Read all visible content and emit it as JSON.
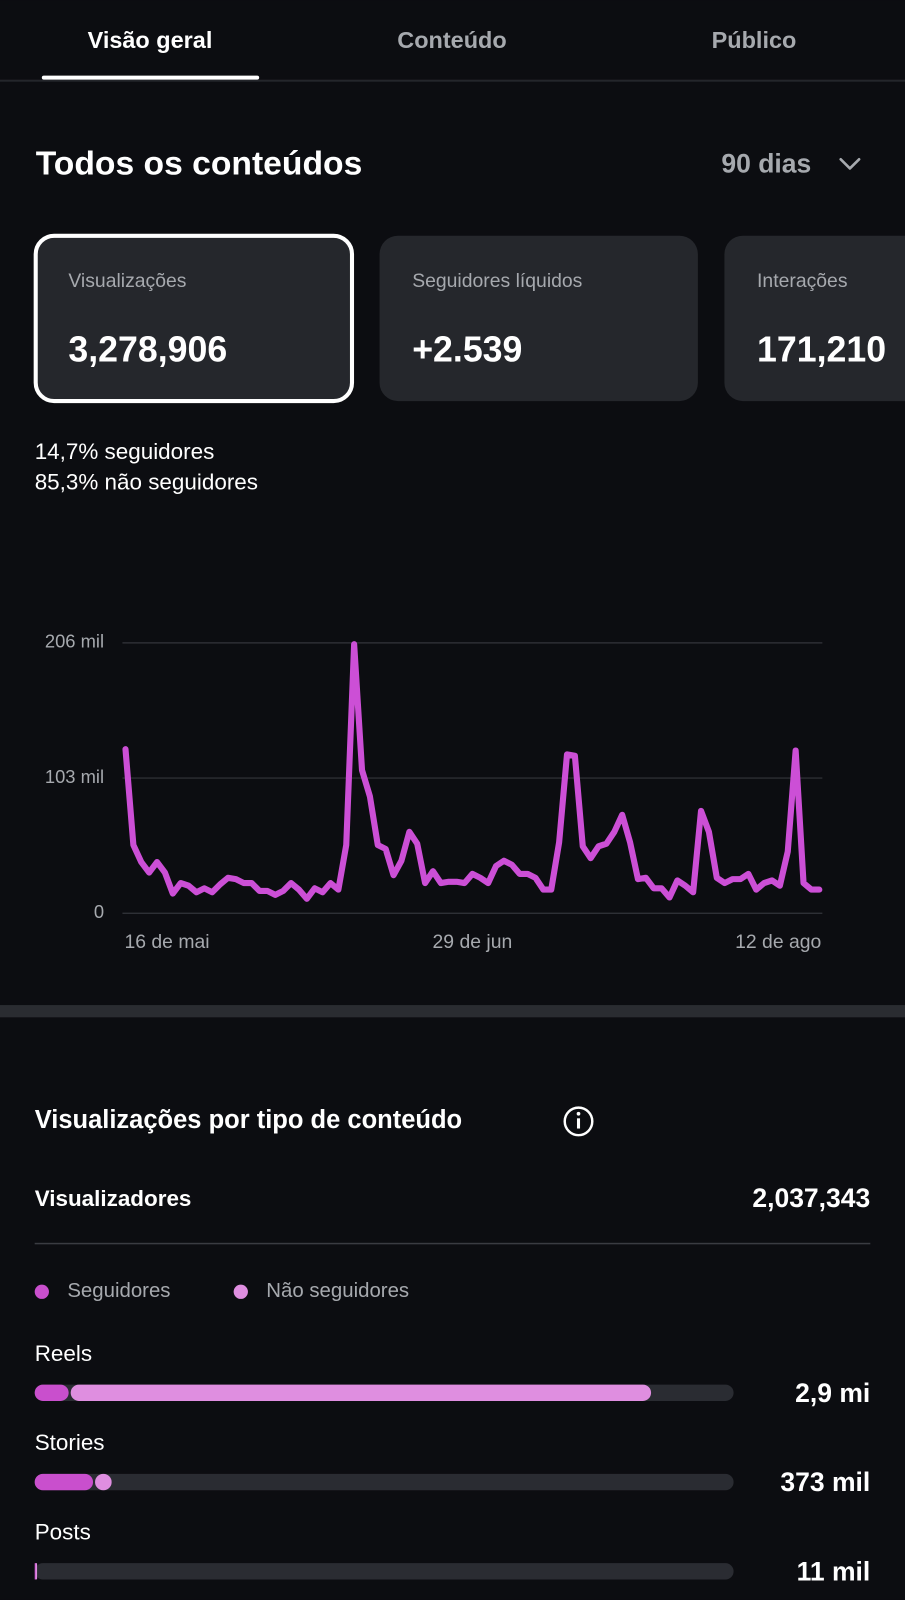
{
  "tabs": [
    "Visão geral",
    "Conteúdo",
    "Público"
  ],
  "header": {
    "title": "Todos os conteúdos",
    "period": "90 dias"
  },
  "cards": [
    {
      "label": "Visualizações",
      "value": "3,278,906"
    },
    {
      "label": "Seguidores líquidos",
      "value": "+2.539"
    },
    {
      "label": "Interações",
      "value": "171,210"
    }
  ],
  "audience": [
    {
      "share": "14,7%",
      "text": "seguidores"
    },
    {
      "share": "85,3%",
      "text": "não seguidores"
    }
  ],
  "viewers": {
    "label": "Visualizadores",
    "value": "2,037,343"
  },
  "chart_data": [
    {
      "type": "line",
      "categories": [
        "16 de mai",
        null,
        null,
        null,
        null,
        null,
        null,
        null,
        null,
        null,
        null,
        null,
        null,
        null,
        null,
        null,
        null,
        null,
        null,
        null,
        null,
        null,
        null,
        null,
        null,
        null,
        null,
        null,
        null,
        null,
        null,
        null,
        null,
        null,
        null,
        null,
        null,
        null,
        null,
        null,
        null,
        null,
        null,
        null,
        "29 de jun",
        null,
        null,
        null,
        null,
        null,
        null,
        null,
        null,
        null,
        null,
        null,
        null,
        null,
        null,
        null,
        null,
        null,
        null,
        null,
        null,
        null,
        null,
        null,
        null,
        null,
        null,
        null,
        null,
        null,
        null,
        null,
        null,
        null,
        null,
        null,
        null,
        null,
        null,
        null,
        null,
        null,
        null,
        null,
        "12 de ago"
      ],
      "series": [
        {
          "color": "#cc4fd6",
          "values": [
            125000,
            52000,
            39000,
            31000,
            39000,
            31000,
            15000,
            23000,
            21000,
            16000,
            19000,
            16000,
            22000,
            27000,
            26000,
            23000,
            23000,
            17000,
            17000,
            14000,
            17000,
            23000,
            18000,
            11000,
            19000,
            16000,
            23000,
            18000,
            52000,
            205000,
            109000,
            89000,
            52000,
            49000,
            29000,
            40000,
            62000,
            53000,
            23000,
            32000,
            23000,
            24000,
            24000,
            23000,
            30000,
            27000,
            23000,
            36000,
            40000,
            37000,
            30000,
            30000,
            27000,
            18000,
            18000,
            54000,
            121000,
            120000,
            51000,
            42000,
            51000,
            53000,
            62000,
            75000,
            54000,
            26000,
            27000,
            19000,
            19000,
            12000,
            25000,
            21000,
            16000,
            78000,
            62000,
            27000,
            23000,
            26000,
            26000,
            30000,
            18000,
            23000,
            25000,
            21000,
            47000,
            124000,
            23000,
            18000,
            18000
          ]
        }
      ],
      "ylim": [
        0,
        206000
      ],
      "yticks": [
        0,
        {
          "value": 103000,
          "label": "103 mil"
        },
        {
          "value": 206000,
          "label": "206 mil"
        }
      ],
      "grid": true
    },
    {
      "type": "bar",
      "orientation": "horizontal",
      "stacked": true,
      "title": "Visualizações por tipo de conteúdo",
      "categories": [
        "Reels",
        "Stories",
        "Posts"
      ],
      "series": [
        {
          "name": "Seguidores",
          "color": "#c94fcd",
          "values": [
            170000,
            285000,
            4000
          ]
        },
        {
          "name": "Não seguidores",
          "color": "#df8ee0",
          "values": [
            2750000,
            88000,
            7000
          ]
        }
      ],
      "totals": {
        "values": [
          2900000,
          373000,
          11000
        ],
        "value_labels": [
          "2,9 mi",
          "373 mil",
          "11 mil"
        ]
      },
      "xlim": [
        0,
        3300000
      ]
    }
  ]
}
